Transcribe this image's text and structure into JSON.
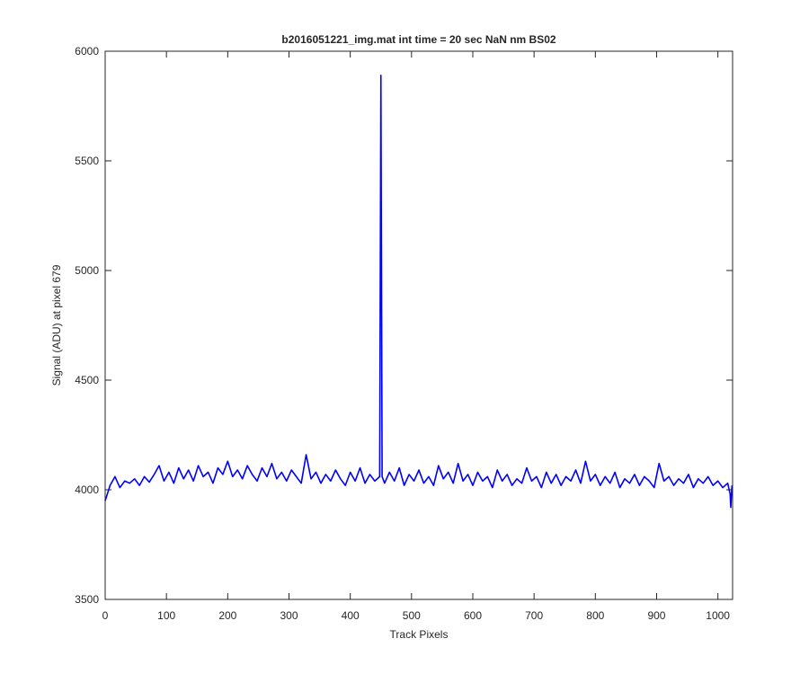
{
  "chart_data": {
    "type": "line",
    "title": "b2016051221_img.mat int time = 20 sec  NaN nm BS02",
    "xlabel": "Track Pixels",
    "ylabel": "Signal (ADU) at pixel 679",
    "xlim": [
      0,
      1024
    ],
    "ylim": [
      3500,
      6000
    ],
    "xticks": [
      0,
      100,
      200,
      300,
      400,
      500,
      600,
      700,
      800,
      900,
      1000
    ],
    "yticks": [
      3500,
      4000,
      4500,
      5000,
      5500,
      6000
    ],
    "color": "#0000ff",
    "x": [
      0,
      8,
      16,
      24,
      32,
      40,
      48,
      56,
      64,
      72,
      80,
      88,
      96,
      104,
      112,
      120,
      128,
      136,
      144,
      152,
      160,
      168,
      176,
      184,
      192,
      200,
      208,
      216,
      224,
      232,
      240,
      248,
      256,
      264,
      272,
      280,
      288,
      296,
      304,
      312,
      320,
      328,
      336,
      344,
      352,
      360,
      368,
      376,
      384,
      392,
      400,
      408,
      416,
      424,
      432,
      440,
      448,
      450,
      452,
      456,
      464,
      472,
      480,
      488,
      496,
      504,
      512,
      520,
      528,
      536,
      544,
      552,
      560,
      568,
      576,
      584,
      592,
      600,
      608,
      616,
      624,
      632,
      640,
      648,
      656,
      664,
      672,
      680,
      688,
      696,
      704,
      712,
      720,
      728,
      736,
      744,
      752,
      760,
      768,
      776,
      784,
      792,
      800,
      808,
      816,
      824,
      832,
      840,
      848,
      856,
      864,
      872,
      880,
      888,
      896,
      904,
      912,
      920,
      928,
      936,
      944,
      952,
      960,
      968,
      976,
      984,
      992,
      1000,
      1008,
      1016,
      1020,
      1021,
      1023
    ],
    "values": [
      3950,
      4020,
      4060,
      4010,
      4040,
      4030,
      4050,
      4020,
      4060,
      4035,
      4070,
      4110,
      4040,
      4080,
      4030,
      4100,
      4050,
      4090,
      4040,
      4110,
      4060,
      4080,
      4030,
      4100,
      4070,
      4130,
      4060,
      4090,
      4050,
      4110,
      4070,
      4040,
      4100,
      4060,
      4120,
      4050,
      4080,
      4040,
      4090,
      4060,
      4030,
      4160,
      4050,
      4080,
      4030,
      4070,
      4040,
      4090,
      4050,
      4020,
      4080,
      4040,
      4100,
      4030,
      4070,
      4040,
      4060,
      5890,
      4060,
      4030,
      4080,
      4040,
      4100,
      4020,
      4070,
      4040,
      4090,
      4030,
      4060,
      4020,
      4110,
      4050,
      4080,
      4030,
      4120,
      4040,
      4070,
      4020,
      4080,
      4040,
      4060,
      4010,
      4090,
      4040,
      4070,
      4020,
      4050,
      4030,
      4100,
      4040,
      4060,
      4010,
      4080,
      4030,
      4070,
      4020,
      4060,
      4040,
      4090,
      4030,
      4130,
      4040,
      4070,
      4020,
      4060,
      4030,
      4080,
      4010,
      4050,
      4030,
      4070,
      4020,
      4060,
      4040,
      4010,
      4120,
      4040,
      4060,
      4020,
      4050,
      4030,
      4070,
      4010,
      4050,
      4030,
      4060,
      4020,
      4040,
      4010,
      4030,
      3980,
      3920,
      4020
    ]
  }
}
